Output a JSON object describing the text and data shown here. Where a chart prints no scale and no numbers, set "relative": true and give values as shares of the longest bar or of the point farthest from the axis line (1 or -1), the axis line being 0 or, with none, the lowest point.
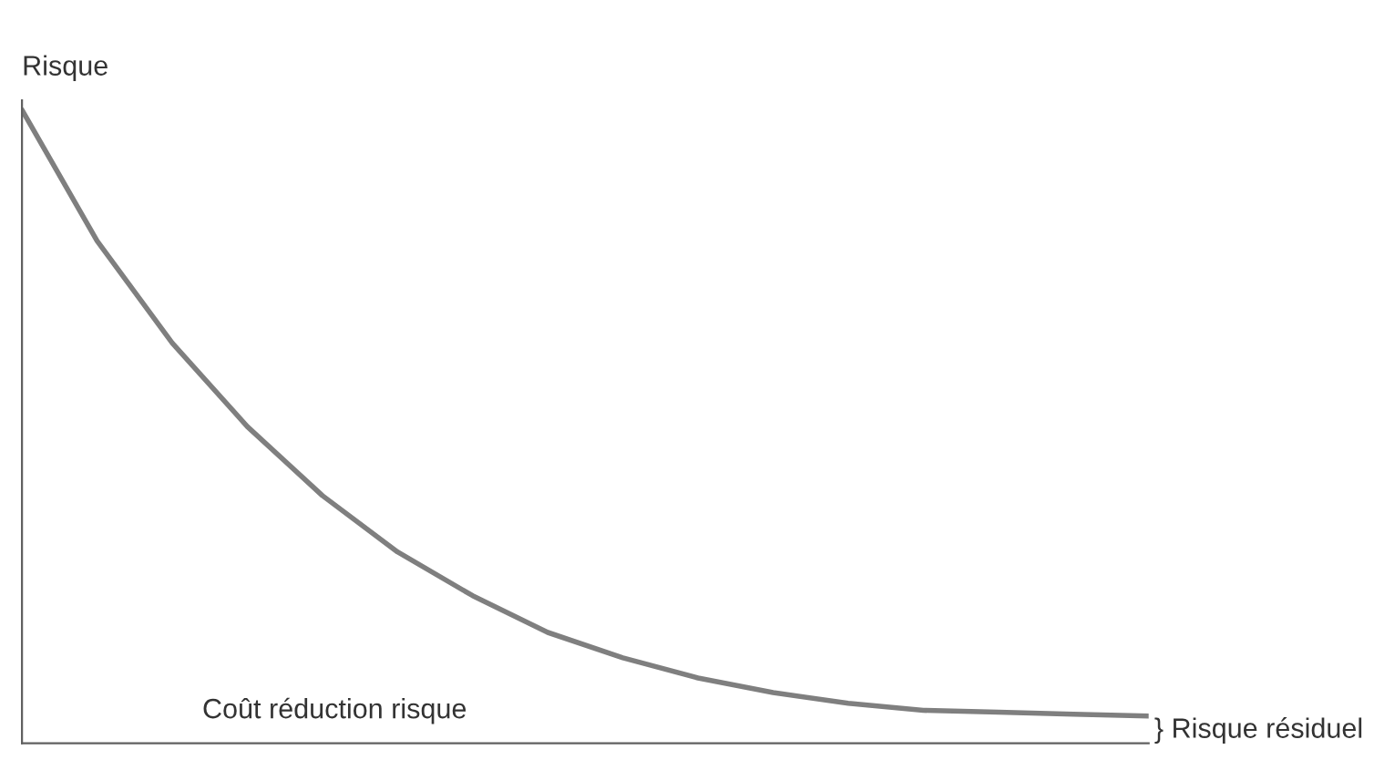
{
  "chart_data": {
    "type": "line",
    "relative": true,
    "ylabel": "Risque",
    "xlabel": "Coût réduction risque",
    "annotations": [
      "} Risque résiduel"
    ],
    "categories": [
      null,
      null,
      null,
      null,
      null,
      null,
      null,
      null,
      null,
      null,
      null,
      null,
      null,
      null,
      null,
      null
    ],
    "series": [
      {
        "color": "#7f7f7f",
        "values": [
          1.0,
          0.793,
          0.632,
          0.5,
          0.391,
          0.302,
          0.233,
          0.175,
          0.135,
          0.103,
          0.08,
          0.063,
          0.052,
          0.049,
          0.046,
          0.043
        ]
      }
    ],
    "legend": false,
    "marker": "none",
    "line_style": "solid"
  }
}
